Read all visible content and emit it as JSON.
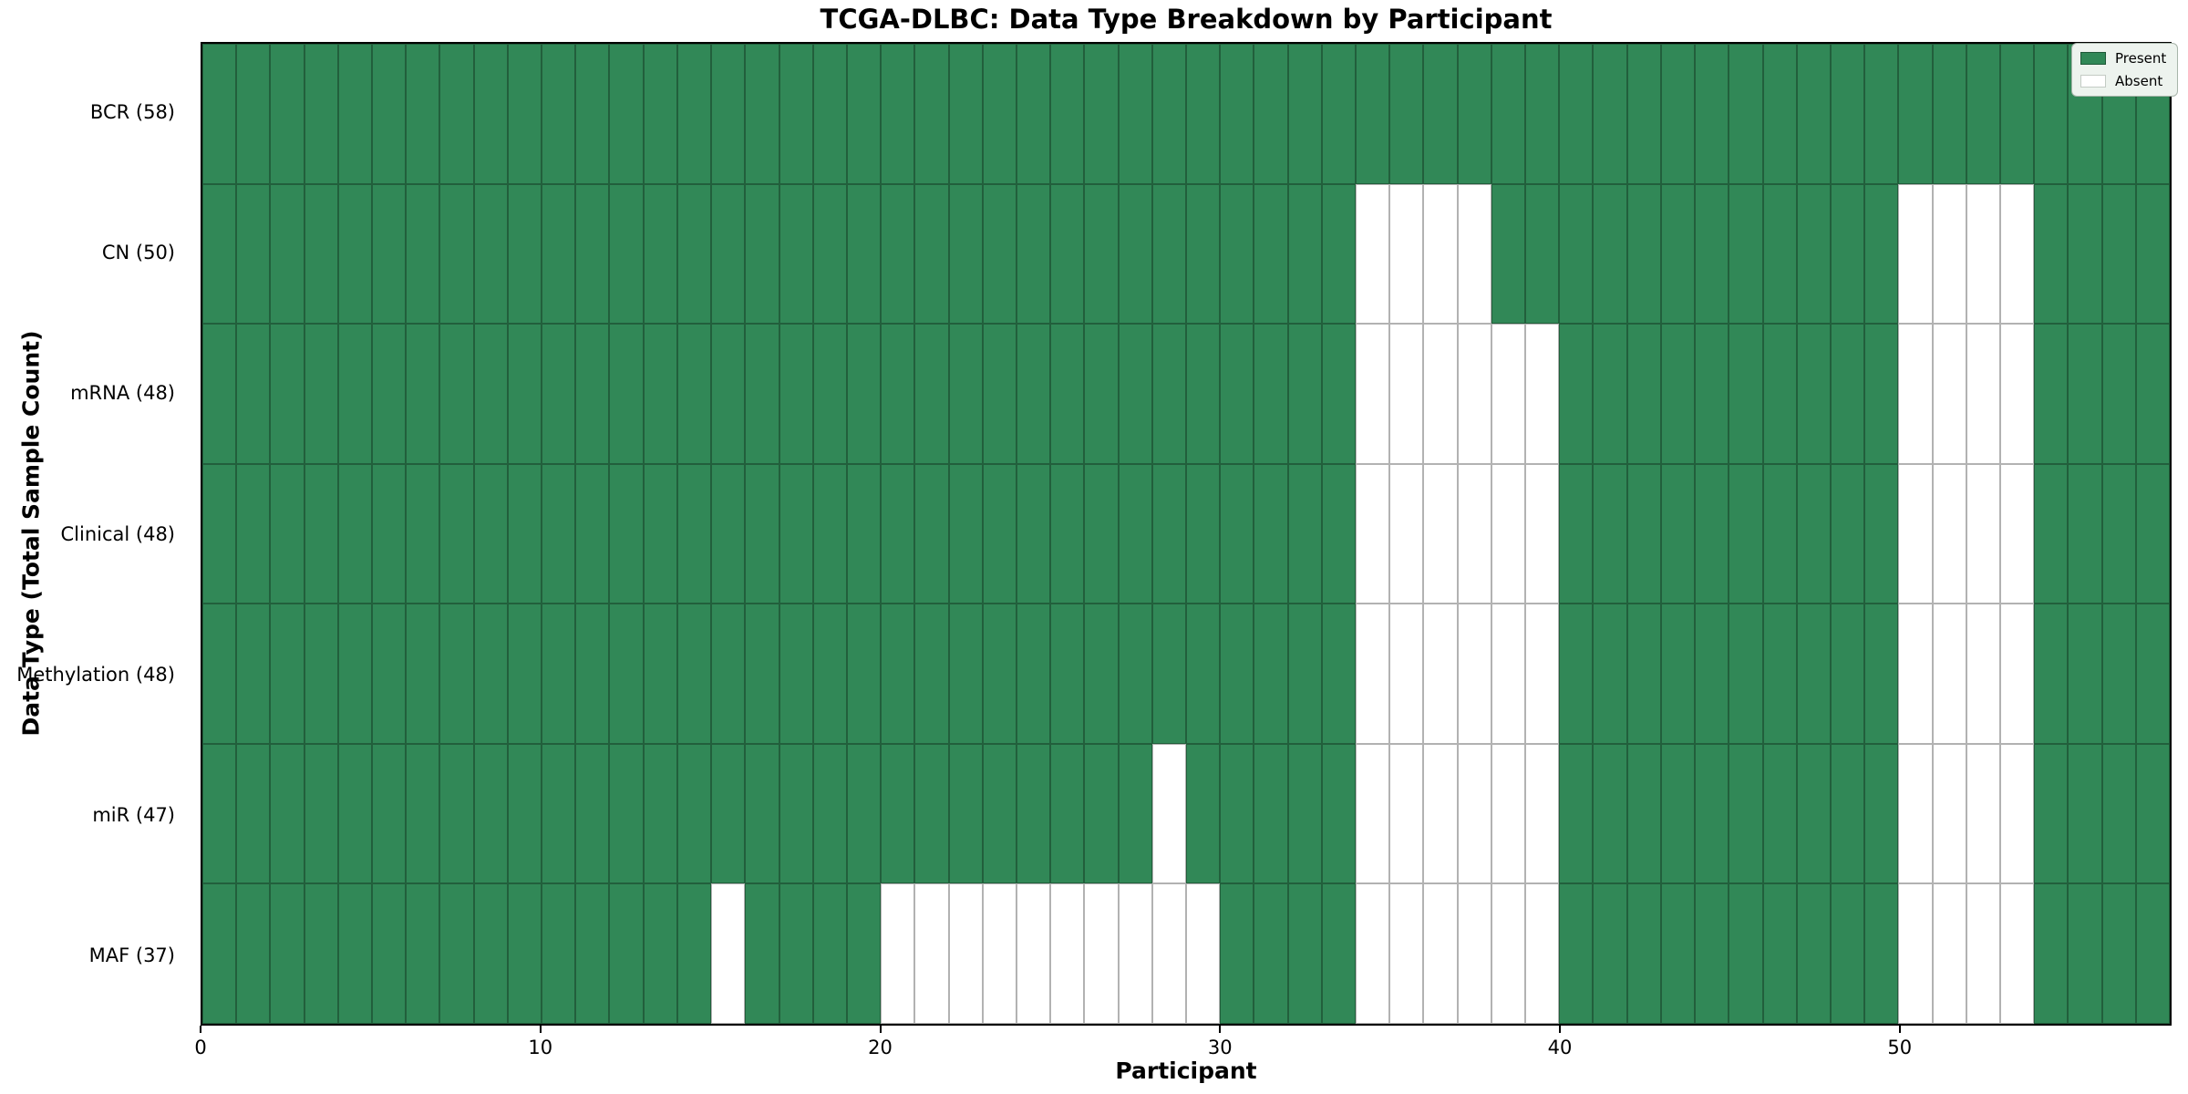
{
  "chart_data": {
    "type": "heatmap",
    "title": "TCGA-DLBC: Data Type Breakdown by Participant",
    "xlabel": "Participant",
    "ylabel": "Data Type (Total Sample Count)",
    "n_participants": 58,
    "xlim": [
      0,
      58
    ],
    "x_ticks": [
      0,
      10,
      20,
      30,
      40,
      50
    ],
    "grid": true,
    "legend": {
      "position": "upper-right",
      "entries": [
        {
          "label": "Present",
          "value": 1,
          "color": "#318857"
        },
        {
          "label": "Absent",
          "value": 0,
          "color": "#ffffff"
        }
      ]
    },
    "colors": {
      "present": "#318857",
      "absent": "#ffffff",
      "grid": "rgba(0,0,0,0.30)",
      "spine": "#000000"
    },
    "rows": [
      {
        "label": "BCR (58)",
        "name": "BCR",
        "present_count": 58,
        "absent_participants": []
      },
      {
        "label": "CN (50)",
        "name": "CN",
        "present_count": 50,
        "absent_participants": [
          34,
          35,
          36,
          37,
          50,
          51,
          52,
          53
        ]
      },
      {
        "label": "mRNA (48)",
        "name": "mRNA",
        "present_count": 48,
        "absent_participants": [
          34,
          35,
          36,
          37,
          38,
          39,
          50,
          51,
          52,
          53
        ]
      },
      {
        "label": "Clinical (48)",
        "name": "Clinical",
        "present_count": 48,
        "absent_participants": [
          34,
          35,
          36,
          37,
          38,
          39,
          50,
          51,
          52,
          53
        ]
      },
      {
        "label": "Methylation (48)",
        "name": "Methylation",
        "present_count": 48,
        "absent_participants": [
          34,
          35,
          36,
          37,
          38,
          39,
          50,
          51,
          52,
          53
        ]
      },
      {
        "label": "miR (47)",
        "name": "miR",
        "present_count": 47,
        "absent_participants": [
          28,
          34,
          35,
          36,
          37,
          38,
          39,
          50,
          51,
          52,
          53
        ]
      },
      {
        "label": "MAF (37)",
        "name": "MAF",
        "present_count": 37,
        "absent_participants": [
          15,
          20,
          21,
          22,
          23,
          24,
          25,
          26,
          27,
          28,
          29,
          34,
          35,
          36,
          37,
          38,
          39,
          50,
          51,
          52,
          53
        ]
      }
    ]
  }
}
